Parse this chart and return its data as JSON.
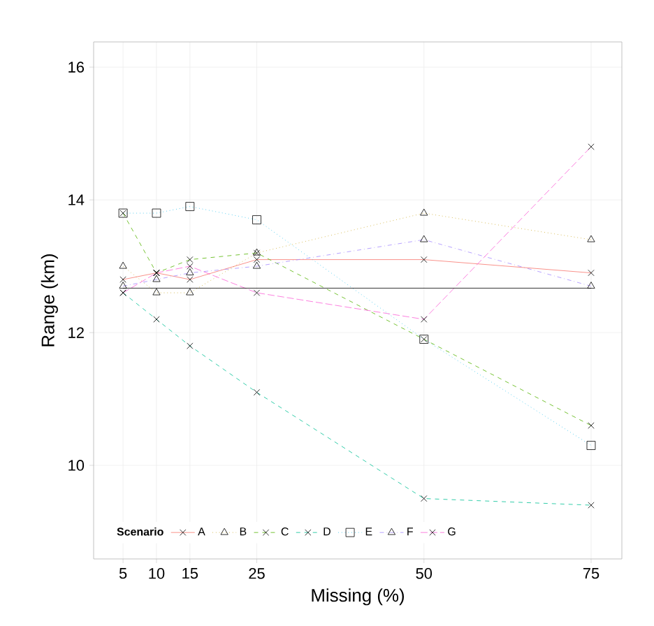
{
  "chart_data": {
    "type": "line",
    "xlabel": "Missing (%)",
    "ylabel": "Range (km)",
    "legend_title": "Scenario",
    "x": [
      5,
      10,
      15,
      25,
      50,
      75
    ],
    "series": [
      {
        "name": "A",
        "color": "#F8766D",
        "marker": "cross",
        "line_style": "solid",
        "values": [
          12.8,
          12.9,
          12.8,
          13.1,
          13.1,
          12.9
        ]
      },
      {
        "name": "B",
        "color": "#C49A00",
        "marker": "triangle",
        "line_style": "dotted",
        "values": [
          13.0,
          12.6,
          12.6,
          13.2,
          13.8,
          13.4
        ]
      },
      {
        "name": "C",
        "color": "#53B400",
        "marker": "cross",
        "line_style": "dashed",
        "values": [
          13.8,
          12.9,
          13.1,
          13.2,
          11.9,
          10.6
        ]
      },
      {
        "name": "D",
        "color": "#00C094",
        "marker": "cross",
        "line_style": "dashed",
        "values": [
          12.6,
          12.2,
          11.8,
          11.1,
          9.5,
          9.4
        ]
      },
      {
        "name": "E",
        "color": "#00B6EB",
        "marker": "square",
        "line_style": "dotted",
        "values": [
          13.8,
          13.8,
          13.9,
          13.7,
          11.9,
          10.3
        ]
      },
      {
        "name": "F",
        "color": "#A58AFF",
        "marker": "triangle",
        "line_style": "dashdot",
        "values": [
          12.7,
          12.8,
          12.9,
          13.0,
          13.4,
          12.7
        ]
      },
      {
        "name": "G",
        "color": "#FB61D7",
        "marker": "cross",
        "line_style": "longdash",
        "values": [
          12.6,
          12.9,
          13.0,
          12.6,
          12.2,
          14.8
        ]
      },
      {
        "color": "#000000",
        "marker": "none",
        "line_style": "solid",
        "values": [
          12.67,
          12.67,
          12.67,
          12.67,
          12.67,
          12.67
        ]
      }
    ],
    "xlim": [
      0.6,
      79.6
    ],
    "ylim": [
      8.59,
      16.38
    ],
    "xticks": [
      5,
      10,
      15,
      25,
      50,
      75
    ],
    "yticks": [
      10,
      12,
      14,
      16
    ],
    "grid": true,
    "legend": "bottom left"
  }
}
